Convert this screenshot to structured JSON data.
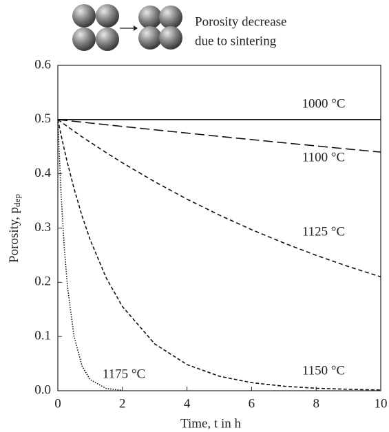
{
  "chart_data": {
    "type": "line",
    "annotation": [
      "Porosity decrease",
      "due to sintering"
    ],
    "xlabel": "Time, t in h",
    "ylabel": "Porosity, p",
    "ylabel_sub": "dep",
    "x": [
      0,
      0.1,
      0.2,
      0.3,
      0.5,
      0.75,
      1,
      1.5,
      2,
      3,
      4,
      5,
      6,
      7,
      8,
      9,
      10
    ],
    "series": [
      {
        "name": "1000 °C",
        "color": "#111111",
        "dash": "none",
        "values": [
          0.5,
          0.5,
          0.5,
          0.5,
          0.5,
          0.5,
          0.5,
          0.5,
          0.5,
          0.5,
          0.5,
          0.5,
          0.5,
          0.5,
          0.5,
          0.5,
          0.5
        ]
      },
      {
        "name": "1100 °C",
        "color": "#111111",
        "dash": "14 6",
        "values": [
          0.5,
          0.4994,
          0.4987,
          0.4981,
          0.4968,
          0.4952,
          0.4936,
          0.4905,
          0.4874,
          0.4812,
          0.4751,
          0.469,
          0.4631,
          0.4572,
          0.4514,
          0.4456,
          0.44
        ]
      },
      {
        "name": "1125 °C",
        "color": "#111111",
        "dash": "6 4",
        "values": [
          0.5,
          0.4957,
          0.4914,
          0.4872,
          0.4787,
          0.4681,
          0.4584,
          0.4389,
          0.4203,
          0.3854,
          0.3533,
          0.324,
          0.297,
          0.2724,
          0.2497,
          0.229,
          0.21
        ]
      },
      {
        "name": "1150 °C",
        "color": "#111111",
        "dash": "5 3",
        "values": [
          0.5,
          0.4716,
          0.4448,
          0.4195,
          0.3732,
          0.3224,
          0.2785,
          0.2079,
          0.1552,
          0.0864,
          0.0482,
          0.0268,
          0.0149,
          0.0083,
          0.0046,
          0.0026,
          0.0014
        ]
      },
      {
        "name": "1175 °C",
        "color": "#111111",
        "dash": "1.5 2",
        "values": [
          0.5,
          0.3631,
          0.2636,
          0.1914,
          0.1009,
          0.0454,
          0.0204,
          0.0041,
          0.0008,
          null,
          null,
          null,
          null,
          null,
          null,
          null,
          null
        ]
      }
    ],
    "xlim": [
      0,
      10
    ],
    "ylim": [
      0,
      0.6
    ],
    "xticks": [
      0,
      2,
      4,
      6,
      8,
      10
    ],
    "yticks": [
      {
        "value": 0,
        "label": "0.0"
      },
      0.1,
      0.2,
      0.3,
      0.4,
      0.5,
      0.6
    ]
  }
}
